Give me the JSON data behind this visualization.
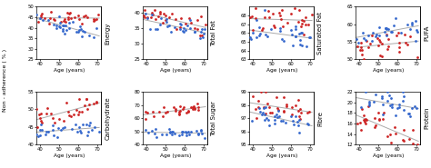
{
  "panels": [
    {
      "title": "Energy",
      "ylim": [
        25,
        50
      ],
      "yticks": [
        25,
        30,
        35,
        40,
        45,
        50
      ],
      "red_slope": -0.02,
      "red_intercept": 45,
      "blue_slope": -0.22,
      "blue_intercept": 43,
      "red_noise": 1.5,
      "blue_noise": 2.0
    },
    {
      "title": "Total Fat",
      "ylim": [
        25,
        42
      ],
      "yticks": [
        25,
        30,
        35,
        40
      ],
      "red_slope": -0.15,
      "red_intercept": 40,
      "blue_slope": -0.15,
      "blue_intercept": 38,
      "red_noise": 1.5,
      "blue_noise": 1.8
    },
    {
      "title": "Saturated Fat",
      "ylim": [
        63,
        69
      ],
      "yticks": [
        63,
        64,
        65,
        66,
        67,
        68
      ],
      "red_slope": -0.04,
      "red_intercept": 68.2,
      "blue_slope": -0.03,
      "blue_intercept": 66.5,
      "red_noise": 0.8,
      "blue_noise": 0.8
    },
    {
      "title": "PUFA",
      "ylim": [
        50,
        65
      ],
      "yticks": [
        50,
        55,
        60,
        65
      ],
      "red_slope": 0.1,
      "red_intercept": 53,
      "blue_slope": 0.08,
      "blue_intercept": 57,
      "red_noise": 2.0,
      "blue_noise": 1.5
    },
    {
      "title": "Carbohydrate",
      "ylim": [
        40,
        55
      ],
      "yticks": [
        40,
        45,
        50,
        55
      ],
      "red_slope": 0.12,
      "red_intercept": 48,
      "blue_slope": 0.04,
      "blue_intercept": 44,
      "red_noise": 1.5,
      "blue_noise": 1.2
    },
    {
      "title": "Total Sugar",
      "ylim": [
        40,
        80
      ],
      "yticks": [
        40,
        50,
        60,
        70,
        80
      ],
      "red_slope": 0.18,
      "red_intercept": 63,
      "blue_slope": 0.02,
      "blue_intercept": 49,
      "red_noise": 2.5,
      "blue_noise": 1.5
    },
    {
      "title": "Fibre",
      "ylim": [
        95,
        99
      ],
      "yticks": [
        95,
        96,
        97,
        98,
        99
      ],
      "red_slope": -0.025,
      "red_intercept": 98.2,
      "blue_slope": -0.035,
      "blue_intercept": 97.5,
      "red_noise": 0.5,
      "blue_noise": 0.5
    },
    {
      "title": "Protein",
      "ylim": [
        12,
        22
      ],
      "yticks": [
        12,
        14,
        16,
        18,
        20,
        22
      ],
      "red_slope": -0.18,
      "red_intercept": 18,
      "blue_slope": -0.08,
      "blue_intercept": 21,
      "red_noise": 1.5,
      "blue_noise": 1.5
    }
  ],
  "red_color": "#cc2222",
  "blue_color": "#3366cc",
  "line_color": "#aaaaaa",
  "bg_color": "#ffffff",
  "xlabel": "Age (years)",
  "ylabel": "Non - adherence ( % )",
  "xlim": [
    38,
    72
  ],
  "xticks": [
    40,
    50,
    60,
    70
  ],
  "n_points": 32,
  "marker_size": 4,
  "title_fontsize": 5.0,
  "label_fontsize": 4.2,
  "tick_fontsize": 3.8
}
